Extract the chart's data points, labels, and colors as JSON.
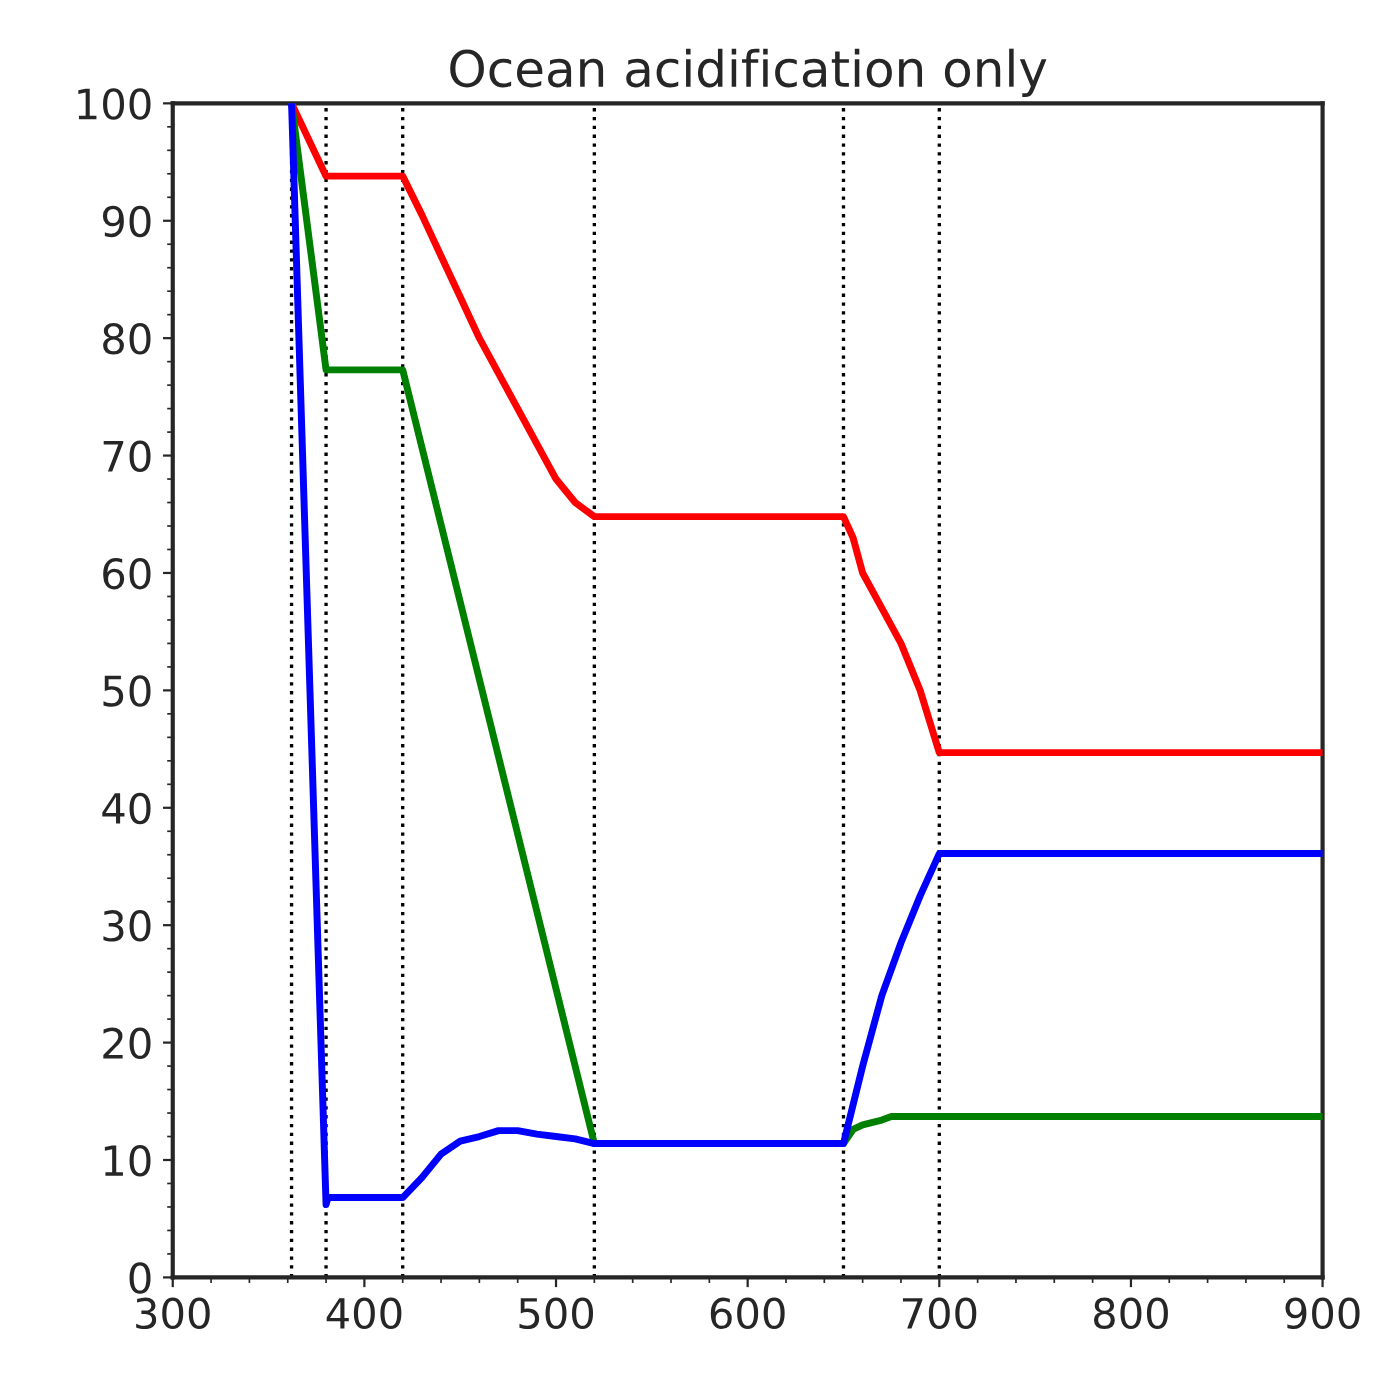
{
  "chart_data": {
    "type": "line",
    "title": "Ocean acidification only",
    "series": [
      {
        "color": "#ff0000",
        "x": [
          362,
          380,
          420,
          430,
          440,
          450,
          460,
          470,
          480,
          490,
          500,
          510,
          520,
          650,
          655,
          660,
          670,
          680,
          690,
          700,
          900
        ],
        "values": [
          100,
          93.8,
          93.8,
          90.5,
          87,
          83.5,
          80,
          77,
          74,
          71,
          68,
          66,
          64.8,
          64.8,
          63,
          60,
          57,
          54,
          50,
          44.7,
          44.7
        ]
      },
      {
        "color": "#008000",
        "x": [
          362,
          380,
          420,
          520,
          650,
          655,
          660,
          670,
          675,
          900
        ],
        "values": [
          100,
          77.3,
          77.3,
          11.4,
          11.4,
          12.6,
          13,
          13.4,
          13.7,
          13.7
        ]
      },
      {
        "color": "#0000ff",
        "x": [
          362,
          380,
          381,
          382,
          420,
          430,
          440,
          450,
          460,
          470,
          480,
          490,
          500,
          510,
          520,
          650,
          660,
          670,
          680,
          690,
          700,
          900
        ],
        "values": [
          100,
          6.2,
          6.8,
          6.8,
          6.8,
          8.5,
          10.5,
          11.6,
          12,
          12.5,
          12.5,
          12.2,
          12,
          11.8,
          11.4,
          11.4,
          18,
          24,
          28.5,
          32.5,
          36.1,
          36.1
        ]
      }
    ],
    "xlim": [
      300,
      900
    ],
    "xticks": [
      300,
      400,
      500,
      600,
      700,
      800,
      900
    ],
    "ylim": [
      0,
      100
    ],
    "yticks": [
      0,
      10,
      20,
      30,
      40,
      50,
      60,
      70,
      80,
      90,
      100
    ],
    "ref_lines": [
      {
        "axis": "x",
        "value": 362,
        "color": "#000000",
        "line_style": "dotted"
      },
      {
        "axis": "x",
        "value": 380,
        "color": "#000000",
        "line_style": "dotted"
      },
      {
        "axis": "x",
        "value": 420,
        "color": "#000000",
        "line_style": "dotted"
      },
      {
        "axis": "x",
        "value": 520,
        "color": "#000000",
        "line_style": "dotted"
      },
      {
        "axis": "x",
        "value": 650,
        "color": "#000000",
        "line_style": "dotted"
      },
      {
        "axis": "x",
        "value": 700,
        "color": "#000000",
        "line_style": "dotted"
      }
    ],
    "grid": false,
    "marker": "none",
    "line_style": "solid"
  }
}
